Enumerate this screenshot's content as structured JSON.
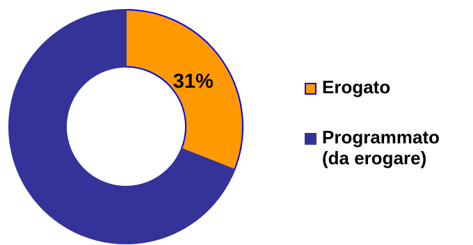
{
  "chart_data": {
    "type": "pie",
    "donut": true,
    "start_angle_deg": 0,
    "direction": "clockwise",
    "slices": [
      {
        "label": "Erogato",
        "value": 31,
        "data_label": "31%",
        "color": "#FF9900",
        "border_color": "#0000FF"
      },
      {
        "label": "Programmato (da erogare)",
        "value": 69,
        "data_label": "",
        "color": "#333399",
        "border_color": "#333399"
      }
    ],
    "legend_position": "right",
    "legend": [
      {
        "lines": [
          "Erogato"
        ],
        "color": "#FF9900",
        "border_color": "#0000FF"
      },
      {
        "lines": [
          "Programmato",
          "(da erogare)"
        ],
        "color": "#333399",
        "border_color": "#333399"
      }
    ],
    "title": ""
  }
}
